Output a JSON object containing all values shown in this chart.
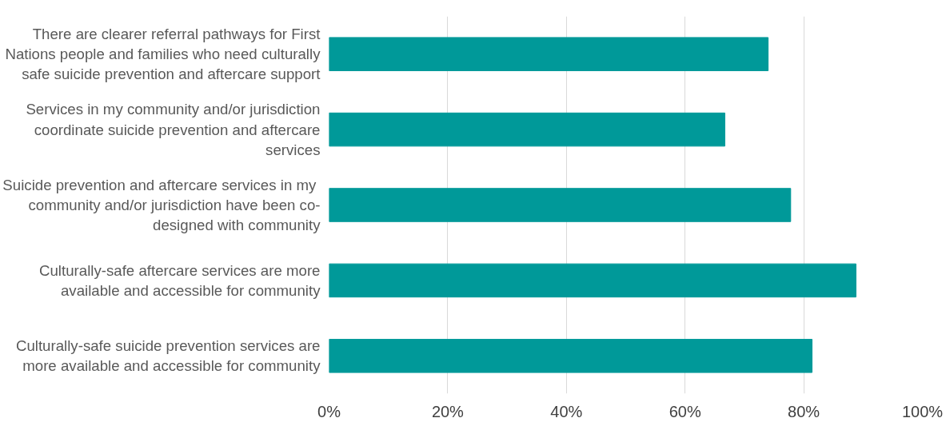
{
  "chart_data": {
    "type": "bar",
    "orientation": "horizontal",
    "categories": [
      "There are clearer referral pathways for First Nations people and families who need culturally safe suicide prevention and aftercare support",
      "Services in my community and/or jurisdiction coordinate suicide prevention and aftercare services",
      "Suicide prevention and aftercare  services in my community and/or jurisdiction have been co-designed with community",
      "Culturally-safe aftercare services are more available and accessible for community",
      "Culturally-safe suicide prevention services are more available and accessible for community"
    ],
    "values": [
      74.0,
      66.7,
      77.8,
      88.8,
      81.4
    ],
    "color": "#009999",
    "xlim": [
      0,
      100
    ],
    "xticks": [
      {
        "value": 0,
        "label": "0%"
      },
      {
        "value": 20,
        "label": "20%"
      },
      {
        "value": 40,
        "label": "40%"
      },
      {
        "value": 60,
        "label": "60%"
      },
      {
        "value": 80,
        "label": "80%"
      },
      {
        "value": 100,
        "label": "100%"
      }
    ],
    "grid": "x"
  }
}
